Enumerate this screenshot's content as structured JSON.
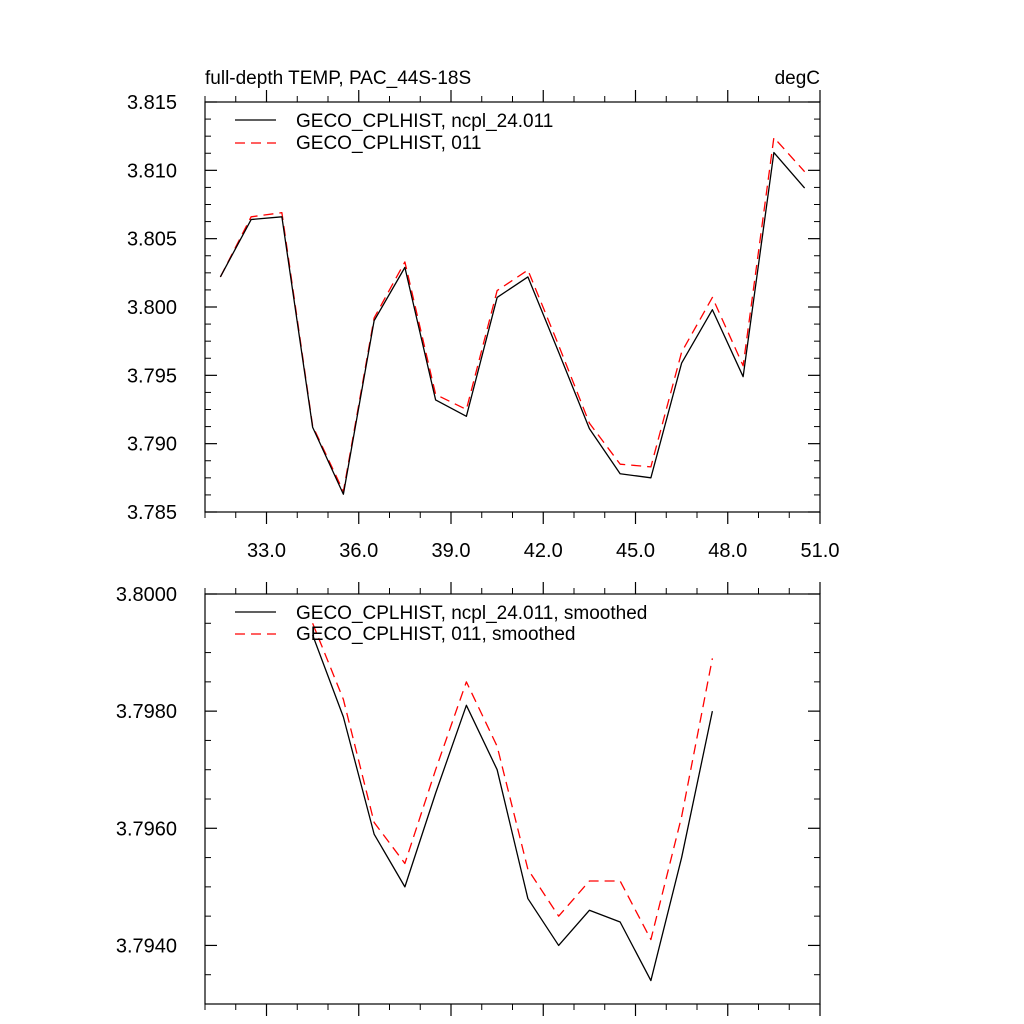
{
  "chart_data": [
    {
      "type": "line",
      "title": "full-depth TEMP, PAC_44S-18S",
      "units": "degC",
      "xlim": [
        31.0,
        51.0
      ],
      "ylim": [
        3.785,
        3.815
      ],
      "xticks": [
        33.0,
        36.0,
        39.0,
        42.0,
        45.0,
        48.0,
        51.0
      ],
      "xtick_labels": [
        "33.0",
        "36.0",
        "39.0",
        "42.0",
        "45.0",
        "48.0",
        "51.0"
      ],
      "yticks": [
        3.785,
        3.79,
        3.795,
        3.8,
        3.805,
        3.81,
        3.815
      ],
      "ytick_labels": [
        "3.785",
        "3.790",
        "3.795",
        "3.800",
        "3.805",
        "3.810",
        "3.815"
      ],
      "x": [
        31.5,
        32.5,
        33.5,
        34.5,
        35.5,
        36.5,
        37.5,
        38.5,
        39.5,
        40.5,
        41.5,
        42.5,
        43.5,
        44.5,
        45.5,
        46.5,
        47.5,
        48.5,
        49.5,
        50.5
      ],
      "series": [
        {
          "name": "GECO_CPLHIST, ncpl_24.011",
          "color": "#000000",
          "dash": "solid",
          "values": [
            3.8022,
            3.8064,
            3.8066,
            3.7912,
            3.7863,
            3.799,
            3.8029,
            3.7932,
            3.792,
            3.8007,
            3.8022,
            3.7967,
            3.7911,
            3.7878,
            3.7875,
            3.7959,
            3.7998,
            3.7949,
            3.8113,
            3.8087
          ]
        },
        {
          "name": "GECO_CPLHIST, 011",
          "color": "#ff0000",
          "dash": "dashed",
          "values": [
            3.8022,
            3.8066,
            3.8069,
            3.7913,
            3.7865,
            3.7992,
            3.8033,
            3.7936,
            3.7925,
            3.8012,
            3.8027,
            3.7972,
            3.7915,
            3.7885,
            3.7883,
            3.7967,
            3.8007,
            3.7957,
            3.8124,
            3.8099
          ]
        }
      ]
    },
    {
      "type": "line",
      "xlim": [
        31.0,
        51.0
      ],
      "ylim": [
        3.793,
        3.8
      ],
      "xticks": [
        33.0,
        36.0,
        39.0,
        42.0,
        45.0,
        48.0,
        51.0
      ],
      "yticks": [
        3.794,
        3.796,
        3.798,
        3.8
      ],
      "ytick_labels": [
        "3.7940",
        "3.7960",
        "3.7980",
        "3.8000"
      ],
      "x": [
        34.5,
        35.5,
        36.5,
        37.5,
        38.5,
        39.5,
        40.5,
        41.5,
        42.5,
        43.5,
        44.5,
        45.5,
        46.5,
        47.5
      ],
      "series": [
        {
          "name": "GECO_CPLHIST, ncpl_24.011, smoothed",
          "color": "#000000",
          "dash": "solid",
          "values": [
            3.7993,
            3.7979,
            3.7959,
            3.795,
            3.7966,
            3.7981,
            3.797,
            3.7948,
            3.794,
            3.7946,
            3.7944,
            3.7934,
            3.7955,
            3.798
          ]
        },
        {
          "name": "GECO_CPLHIST, 011, smoothed",
          "color": "#ff0000",
          "dash": "dashed",
          "values": [
            3.7995,
            3.7982,
            3.7961,
            3.7954,
            3.797,
            3.7985,
            3.7974,
            3.7953,
            3.7945,
            3.7951,
            3.7951,
            3.7941,
            3.7962,
            3.7989
          ]
        }
      ]
    }
  ]
}
